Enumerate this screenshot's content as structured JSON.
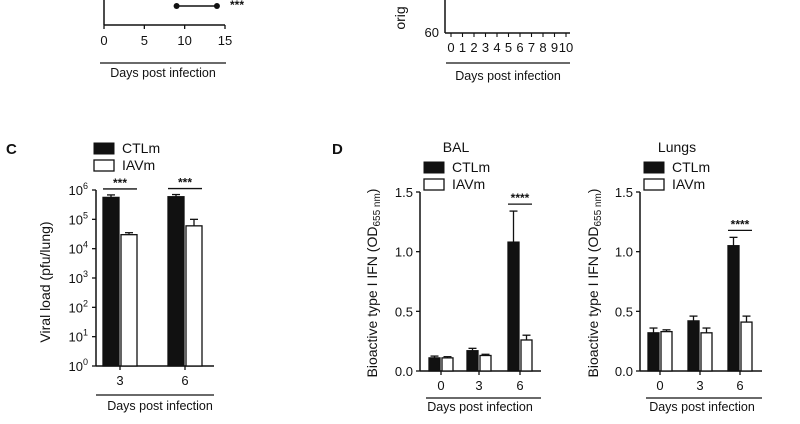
{
  "colors": {
    "filled": "#111111",
    "open": "#ffffff",
    "axis": "#111111"
  },
  "top_left": {
    "x_ticks": [
      "0",
      "5",
      "10",
      "15"
    ],
    "x_range": [
      0,
      15
    ],
    "xlabel": "Days post infection",
    "stars": "***",
    "segment": [
      9,
      14
    ]
  },
  "top_right": {
    "ylabel_fragment": "orig",
    "y_tick": "60",
    "x_ticks": [
      "0",
      "1",
      "2",
      "3",
      "4",
      "5",
      "6",
      "7",
      "8",
      "9",
      "10"
    ],
    "xlabel": "Days post infection"
  },
  "panel_c": {
    "letter": "C",
    "ylabel": "Viral load (pfu/lung)",
    "xlabel": "Days post infection",
    "legend": [
      {
        "label": "CTLm",
        "style": "filled"
      },
      {
        "label": "IAVm",
        "style": "open"
      }
    ],
    "y_ticks": [
      {
        "base": "10",
        "exp": "0",
        "log": 0
      },
      {
        "base": "10",
        "exp": "1",
        "log": 1
      },
      {
        "base": "10",
        "exp": "2",
        "log": 2
      },
      {
        "base": "10",
        "exp": "3",
        "log": 3
      },
      {
        "base": "10",
        "exp": "4",
        "log": 4
      },
      {
        "base": "10",
        "exp": "5",
        "log": 5
      },
      {
        "base": "10",
        "exp": "6",
        "log": 6
      }
    ]
  },
  "panel_d": {
    "letter": "D"
  },
  "chart_data": [
    {
      "type": "bar",
      "scale": "log",
      "categories": [
        "3",
        "6"
      ],
      "series": [
        {
          "name": "CTLm",
          "values": [
            560000,
            590000
          ],
          "error": [
            120000,
            110000
          ]
        },
        {
          "name": "IAVm",
          "values": [
            30000,
            60000
          ],
          "error": [
            5000,
            40000
          ]
        }
      ],
      "ylim": [
        1,
        1000000
      ],
      "significance": [
        "***",
        "***"
      ]
    },
    {
      "type": "bar",
      "title": "BAL",
      "ylabel_main": "Bioactive type I IFN (OD",
      "ylabel_sub": "655 nm",
      "ylabel_end": ")",
      "xlabel": "Days post infection",
      "categories": [
        "0",
        "3",
        "6"
      ],
      "series": [
        {
          "name": "CTLm",
          "values": [
            0.11,
            0.17,
            1.08
          ],
          "error": [
            0.015,
            0.02,
            0.26
          ]
        },
        {
          "name": "IAVm",
          "values": [
            0.11,
            0.13,
            0.26
          ],
          "error": [
            0.01,
            0.01,
            0.04
          ]
        }
      ],
      "ylim": [
        0,
        1.5
      ],
      "y_ticks": [
        "0.0",
        "0.5",
        "1.0",
        "1.5"
      ],
      "y_tick_values": [
        0,
        0.5,
        1.0,
        1.5
      ],
      "significance": [
        "",
        "",
        "****"
      ]
    },
    {
      "type": "bar",
      "title": "Lungs",
      "ylabel_main": "Bioactive type I IFN (OD",
      "ylabel_sub": "655 nm",
      "ylabel_end": ")",
      "xlabel": "Days post infection",
      "categories": [
        "0",
        "3",
        "6"
      ],
      "series": [
        {
          "name": "CTLm",
          "values": [
            0.32,
            0.42,
            1.05
          ],
          "error": [
            0.04,
            0.04,
            0.07
          ]
        },
        {
          "name": "IAVm",
          "values": [
            0.33,
            0.32,
            0.41
          ],
          "error": [
            0.015,
            0.04,
            0.05
          ]
        }
      ],
      "ylim": [
        0,
        1.5
      ],
      "y_ticks": [
        "0.0",
        "0.5",
        "1.0",
        "1.5"
      ],
      "y_tick_values": [
        0,
        0.5,
        1.0,
        1.5
      ],
      "significance": [
        "",
        "",
        "****"
      ]
    }
  ]
}
